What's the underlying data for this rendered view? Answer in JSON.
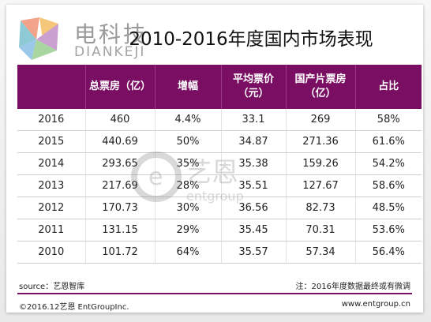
{
  "logo": {
    "cn": "电科技",
    "en": "DIANKEJI"
  },
  "watermark": {
    "cn": "艺恩",
    "en": "entgroup"
  },
  "colors": {
    "header_bg": "#7a0e62",
    "accent": "#7a0e62"
  },
  "chart_data": {
    "type": "table",
    "title": "2010-2016年度国内市场表现",
    "columns": [
      "",
      "总票房（亿）",
      "增幅",
      "平均票价（元）",
      "国产片票房（亿）",
      "占比"
    ],
    "header_lines": [
      [
        ""
      ],
      [
        "总票房（亿）"
      ],
      [
        "增幅"
      ],
      [
        "平均票价",
        "（元）"
      ],
      [
        "国产片票房",
        "（亿）"
      ],
      [
        "占比"
      ]
    ],
    "rows": [
      [
        "2016",
        "460",
        "4.4%",
        "33.1",
        "269",
        "58%"
      ],
      [
        "2015",
        "440.69",
        "50%",
        "34.87",
        "271.36",
        "61.6%"
      ],
      [
        "2014",
        "293.65",
        "35%",
        "35.38",
        "159.26",
        "54.2%"
      ],
      [
        "2013",
        "217.69",
        "28%",
        "35.51",
        "127.67",
        "58.6%"
      ],
      [
        "2012",
        "170.73",
        "30%",
        "36.56",
        "82.73",
        "48.5%"
      ],
      [
        "2011",
        "131.15",
        "29%",
        "35.45",
        "70.31",
        "53.6%"
      ],
      [
        "2010",
        "101.72",
        "64%",
        "35.57",
        "57.34",
        "56.4%"
      ]
    ]
  },
  "footer": {
    "source": "source：艺恩智库",
    "note": "注：2016年度数据最终或有微调",
    "copyright": "©2016.12艺恩 EntGroupInc.",
    "website": "www.entgroup.cn"
  }
}
